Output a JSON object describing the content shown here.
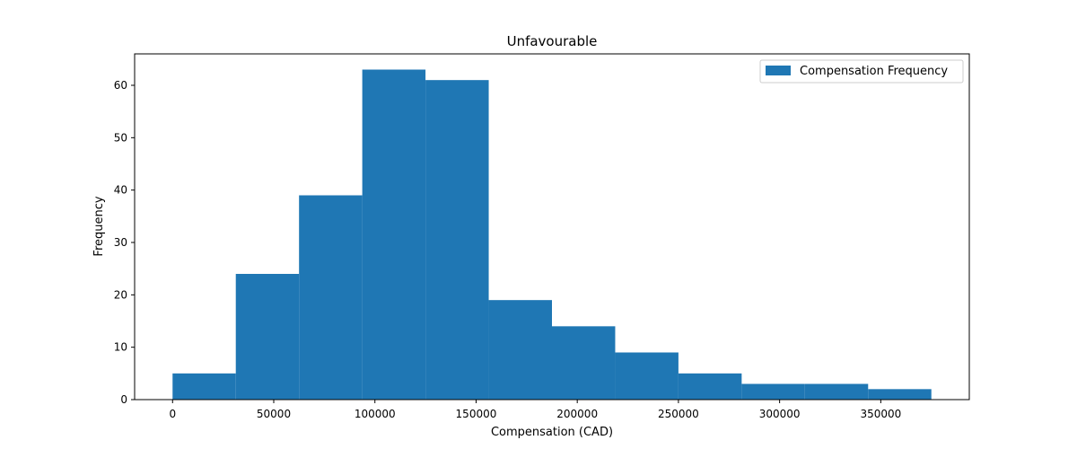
{
  "chart_data": {
    "type": "bar",
    "title": "Unfavourable",
    "xlabel": "Compensation (CAD)",
    "ylabel": "Frequency",
    "bin_edges": [
      0,
      31250,
      62500,
      93750,
      125000,
      156250,
      187500,
      218750,
      250000,
      281250,
      312500,
      343750,
      375000
    ],
    "series": [
      {
        "name": "Compensation Frequency",
        "values": [
          5,
          24,
          39,
          63,
          61,
          19,
          14,
          9,
          5,
          3,
          3,
          2
        ]
      }
    ],
    "xlim": [
      -18750,
      393750
    ],
    "ylim": [
      0,
      66
    ],
    "x_ticks": [
      0,
      50000,
      100000,
      150000,
      200000,
      250000,
      300000,
      350000
    ],
    "y_ticks": [
      0,
      10,
      20,
      30,
      40,
      50,
      60
    ],
    "grid": false,
    "legend": "top-right",
    "colors": {
      "bar": "#1f77b4"
    }
  }
}
